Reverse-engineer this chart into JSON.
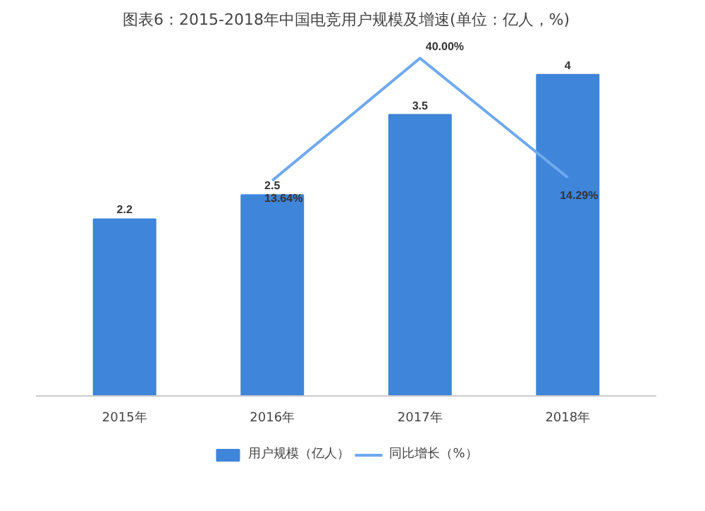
{
  "chart_data": {
    "type": "bar",
    "title": "图表6：2015-2018年中国电竞用户规模及增速(单位：亿人，%)",
    "categories": [
      "2015年",
      "2016年",
      "2017年",
      "2018年"
    ],
    "series": [
      {
        "name": "用户规模（亿人）",
        "color": "#3f85d9",
        "values": [
          2.2,
          2.5,
          3.5,
          4
        ],
        "value_labels": [
          "2.2",
          "2.5",
          "3.5",
          "4"
        ]
      },
      {
        "name": "同比增长（%）",
        "type": "line",
        "axis": "y2",
        "color": "#6fa9ee",
        "values": [
          null,
          13.64,
          40.0,
          14.29
        ],
        "value_labels": [
          null,
          "13.64%",
          "40.00%",
          "14.29%"
        ]
      }
    ],
    "legend": "bottom",
    "tick_labels": "x"
  }
}
